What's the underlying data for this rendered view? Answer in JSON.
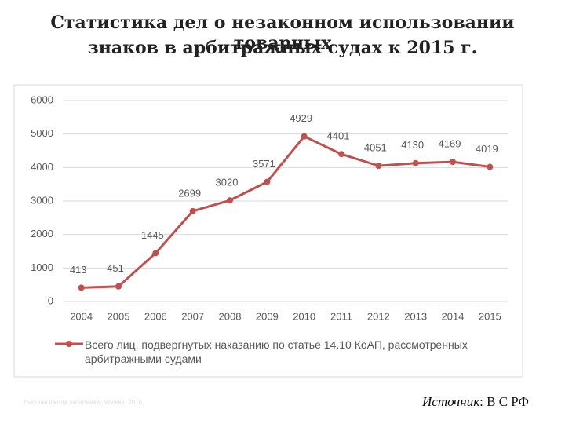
{
  "chart_data": {
    "type": "line",
    "title_lines": [
      "Статистика дел о незаконном использовании товарных",
      "знаков в арбитражных судах к 2015 г."
    ],
    "categories": [
      "2004",
      "2005",
      "2006",
      "2007",
      "2008",
      "2009",
      "2010",
      "2011",
      "2012",
      "2013",
      "2014",
      "2015"
    ],
    "series": [
      {
        "name": "Всего лиц, подвергнутых наказанию по статье 14.10 КоАП, рассмотренных арбитражными судами",
        "color": "#c0504d",
        "values": [
          413,
          451,
          1445,
          2699,
          3020,
          3571,
          4929,
          4401,
          4051,
          4130,
          4169,
          4019
        ]
      }
    ],
    "ylim": [
      0,
      6000
    ],
    "yticks": [
      0,
      1000,
      2000,
      3000,
      4000,
      5000,
      6000
    ],
    "grid": true,
    "legend": "bottom",
    "footer": "Высшая школа экономики, Москва, 2016",
    "source_label": "Источник",
    "source_text": ": В С РФ"
  }
}
